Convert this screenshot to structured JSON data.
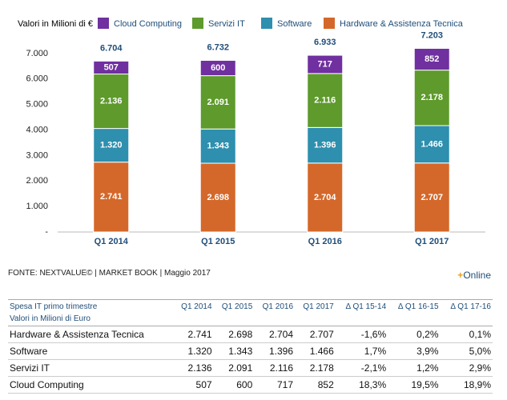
{
  "chart_data": {
    "type": "stacked-bar",
    "y_label": "Valori in Milioni di €",
    "categories": [
      "Q1 2014",
      "Q1 2015",
      "Q1 2016",
      "Q1 2017"
    ],
    "series": [
      {
        "name": "Cloud Computing",
        "color": "#7030a0",
        "values": [
          507,
          600,
          717,
          852
        ]
      },
      {
        "name": "Servizi IT",
        "color": "#5e9a2c",
        "values": [
          2136,
          2091,
          2116,
          2178
        ],
        "value_labels": [
          "2.136",
          "2.091",
          "2.116",
          "2.178"
        ]
      },
      {
        "name": "Software",
        "color": "#2e8fae",
        "values": [
          1320,
          1343,
          1396,
          1466
        ],
        "value_labels": [
          "1.320",
          "1.343",
          "1.396",
          "1.466"
        ]
      },
      {
        "name": "Hardware & Assistenza Tecnica",
        "color": "#d4682a",
        "values": [
          2741,
          2698,
          2704,
          2707
        ],
        "value_labels": [
          "2.741",
          "2.698",
          "2.704",
          "2.707"
        ]
      }
    ],
    "totals": {
      "values": [
        6704,
        6732,
        6933,
        7203
      ],
      "value_labels": [
        "6.704",
        "6.732",
        "6.933",
        "7.203"
      ]
    },
    "ylim": [
      0,
      7500
    ],
    "yticks": [
      {
        "value": 0,
        "label": "-"
      },
      {
        "value": 1000,
        "label": "1.000"
      },
      {
        "value": 2000,
        "label": "2.000"
      },
      {
        "value": 3000,
        "label": "3.000"
      },
      {
        "value": 4000,
        "label": "4.000"
      },
      {
        "value": 5000,
        "label": "5.000"
      },
      {
        "value": 6000,
        "label": "6.000"
      },
      {
        "value": 7000,
        "label": "7.000"
      }
    ],
    "grid": false
  },
  "source": "FONTE: NEXTVALUE© | MARKET BOOK | Maggio 2017",
  "brand": {
    "plus": "+",
    "text": "Online"
  },
  "table": {
    "title": "Spesa IT primo trimestre",
    "subtitle": "Valori in Milioni di Euro",
    "columns": [
      "Q1 2014",
      "Q1 2015",
      "Q1 2016",
      "Q1 2017",
      "Δ Q1 15-14",
      "Δ Q1 16-15",
      "Δ Q1 17-16"
    ],
    "rows": [
      [
        "Hardware & Assistenza Tecnica",
        "2.741",
        "2.698",
        "2.704",
        "2.707",
        "-1,6%",
        "0,2%",
        "0,1%"
      ],
      [
        "Software",
        "1.320",
        "1.343",
        "1.396",
        "1.466",
        "1,7%",
        "3,9%",
        "5,0%"
      ],
      [
        "Servizi IT",
        "2.136",
        "2.091",
        "2.116",
        "2.178",
        "-2,1%",
        "1,2%",
        "2,9%"
      ],
      [
        "Cloud Computing",
        "507",
        "600",
        "717",
        "852",
        "18,3%",
        "19,5%",
        "18,9%"
      ]
    ]
  }
}
